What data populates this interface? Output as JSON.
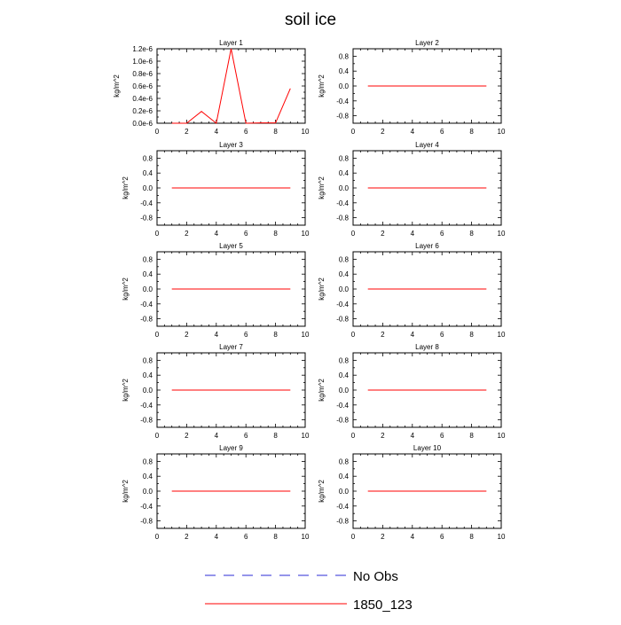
{
  "figure": {
    "title": "soil ice"
  },
  "legend": {
    "items": [
      {
        "label": "No Obs",
        "style": "dashed",
        "color": "#2b2bd6"
      },
      {
        "label": "1850_123",
        "style": "solid",
        "color": "#ff0000"
      }
    ]
  },
  "colors": {
    "series": "#ff0000",
    "axis": "#000000"
  },
  "chart_data": [
    {
      "type": "line",
      "title": "Layer 1",
      "ylabel": "kg/m^2",
      "xlabel": "",
      "xlim": [
        0,
        10
      ],
      "ylim": [
        0,
        1.2e-06
      ],
      "xticks": [
        0,
        2,
        4,
        6,
        8,
        10
      ],
      "yticks": [
        0,
        2e-07,
        4e-07,
        6e-07,
        8e-07,
        1e-06,
        1.2e-06
      ],
      "ytick_labels": [
        "0.0e-6",
        "0.2e-6",
        "0.4e-6",
        "0.6e-6",
        "0.8e-6",
        "1.0e-6",
        "1.2e-6"
      ],
      "series": [
        {
          "name": "1850_123",
          "x": [
            1,
            2,
            3,
            4,
            5,
            6,
            7,
            8,
            9
          ],
          "y": [
            0,
            0,
            1.9e-07,
            0,
            1.2e-06,
            0,
            5e-09,
            5e-09,
            5.6e-07
          ]
        }
      ]
    },
    {
      "type": "line",
      "title": "Layer 2",
      "ylabel": "kg/m^2",
      "xlim": [
        0,
        10
      ],
      "ylim": [
        -1,
        1
      ],
      "xticks": [
        0,
        2,
        4,
        6,
        8,
        10
      ],
      "yticks": [
        -0.8,
        -0.4,
        0,
        0.4,
        0.8
      ],
      "ytick_labels": [
        "-0.8",
        "-0.4",
        "0.0",
        "0.4",
        "0.8"
      ],
      "series": [
        {
          "name": "1850_123",
          "x": [
            1,
            2,
            3,
            4,
            5,
            6,
            7,
            8,
            9
          ],
          "y": [
            0,
            0,
            0,
            0,
            0,
            0,
            0,
            0,
            0
          ]
        }
      ]
    },
    {
      "type": "line",
      "title": "Layer 3",
      "ylabel": "kg/m^2",
      "xlim": [
        0,
        10
      ],
      "ylim": [
        -1,
        1
      ],
      "xticks": [
        0,
        2,
        4,
        6,
        8,
        10
      ],
      "yticks": [
        -0.8,
        -0.4,
        0,
        0.4,
        0.8
      ],
      "ytick_labels": [
        "-0.8",
        "-0.4",
        "0.0",
        "0.4",
        "0.8"
      ],
      "series": [
        {
          "name": "1850_123",
          "x": [
            1,
            2,
            3,
            4,
            5,
            6,
            7,
            8,
            9
          ],
          "y": [
            0,
            0,
            0,
            0,
            0,
            0,
            0,
            0,
            0
          ]
        }
      ]
    },
    {
      "type": "line",
      "title": "Layer 4",
      "ylabel": "kg/m^2",
      "xlim": [
        0,
        10
      ],
      "ylim": [
        -1,
        1
      ],
      "xticks": [
        0,
        2,
        4,
        6,
        8,
        10
      ],
      "yticks": [
        -0.8,
        -0.4,
        0,
        0.4,
        0.8
      ],
      "ytick_labels": [
        "-0.8",
        "-0.4",
        "0.0",
        "0.4",
        "0.8"
      ],
      "series": [
        {
          "name": "1850_123",
          "x": [
            1,
            2,
            3,
            4,
            5,
            6,
            7,
            8,
            9
          ],
          "y": [
            0,
            0,
            0,
            0,
            0,
            0,
            0,
            0,
            0
          ]
        }
      ]
    },
    {
      "type": "line",
      "title": "Layer 5",
      "ylabel": "kg/m^2",
      "xlim": [
        0,
        10
      ],
      "ylim": [
        -1,
        1
      ],
      "xticks": [
        0,
        2,
        4,
        6,
        8,
        10
      ],
      "yticks": [
        -0.8,
        -0.4,
        0,
        0.4,
        0.8
      ],
      "ytick_labels": [
        "-0.8",
        "-0.4",
        "0.0",
        "0.4",
        "0.8"
      ],
      "series": [
        {
          "name": "1850_123",
          "x": [
            1,
            2,
            3,
            4,
            5,
            6,
            7,
            8,
            9
          ],
          "y": [
            0,
            0,
            0,
            0,
            0,
            0,
            0,
            0,
            0
          ]
        }
      ]
    },
    {
      "type": "line",
      "title": "Layer 6",
      "ylabel": "kg/m^2",
      "xlim": [
        0,
        10
      ],
      "ylim": [
        -1,
        1
      ],
      "xticks": [
        0,
        2,
        4,
        6,
        8,
        10
      ],
      "yticks": [
        -0.8,
        -0.4,
        0,
        0.4,
        0.8
      ],
      "ytick_labels": [
        "-0.8",
        "-0.4",
        "0.0",
        "0.4",
        "0.8"
      ],
      "series": [
        {
          "name": "1850_123",
          "x": [
            1,
            2,
            3,
            4,
            5,
            6,
            7,
            8,
            9
          ],
          "y": [
            0,
            0,
            0,
            0,
            0,
            0,
            0,
            0,
            0
          ]
        }
      ]
    },
    {
      "type": "line",
      "title": "Layer 7",
      "ylabel": "kg/m^2",
      "xlim": [
        0,
        10
      ],
      "ylim": [
        -1,
        1
      ],
      "xticks": [
        0,
        2,
        4,
        6,
        8,
        10
      ],
      "yticks": [
        -0.8,
        -0.4,
        0,
        0.4,
        0.8
      ],
      "ytick_labels": [
        "-0.8",
        "-0.4",
        "0.0",
        "0.4",
        "0.8"
      ],
      "series": [
        {
          "name": "1850_123",
          "x": [
            1,
            2,
            3,
            4,
            5,
            6,
            7,
            8,
            9
          ],
          "y": [
            0,
            0,
            0,
            0,
            0,
            0,
            0,
            0,
            0
          ]
        }
      ]
    },
    {
      "type": "line",
      "title": "Layer 8",
      "ylabel": "kg/m^2",
      "xlim": [
        0,
        10
      ],
      "ylim": [
        -1,
        1
      ],
      "xticks": [
        0,
        2,
        4,
        6,
        8,
        10
      ],
      "yticks": [
        -0.8,
        -0.4,
        0,
        0.4,
        0.8
      ],
      "ytick_labels": [
        "-0.8",
        "-0.4",
        "0.0",
        "0.4",
        "0.8"
      ],
      "series": [
        {
          "name": "1850_123",
          "x": [
            1,
            2,
            3,
            4,
            5,
            6,
            7,
            8,
            9
          ],
          "y": [
            0,
            0,
            0,
            0,
            0,
            0,
            0,
            0,
            0
          ]
        }
      ]
    },
    {
      "type": "line",
      "title": "Layer 9",
      "ylabel": "kg/m^2",
      "xlim": [
        0,
        10
      ],
      "ylim": [
        -1,
        1
      ],
      "xticks": [
        0,
        2,
        4,
        6,
        8,
        10
      ],
      "yticks": [
        -0.8,
        -0.4,
        0,
        0.4,
        0.8
      ],
      "ytick_labels": [
        "-0.8",
        "-0.4",
        "0.0",
        "0.4",
        "0.8"
      ],
      "series": [
        {
          "name": "1850_123",
          "x": [
            1,
            2,
            3,
            4,
            5,
            6,
            7,
            8,
            9
          ],
          "y": [
            0,
            0,
            0,
            0,
            0,
            0,
            0,
            0,
            0
          ]
        }
      ]
    },
    {
      "type": "line",
      "title": "Layer 10",
      "ylabel": "kg/m^2",
      "xlim": [
        0,
        10
      ],
      "ylim": [
        -1,
        1
      ],
      "xticks": [
        0,
        2,
        4,
        6,
        8,
        10
      ],
      "yticks": [
        -0.8,
        -0.4,
        0,
        0.4,
        0.8
      ],
      "ytick_labels": [
        "-0.8",
        "-0.4",
        "0.0",
        "0.4",
        "0.8"
      ],
      "series": [
        {
          "name": "1850_123",
          "x": [
            1,
            2,
            3,
            4,
            5,
            6,
            7,
            8,
            9
          ],
          "y": [
            0,
            0,
            0,
            0,
            0,
            0,
            0,
            0,
            0
          ]
        }
      ]
    }
  ]
}
